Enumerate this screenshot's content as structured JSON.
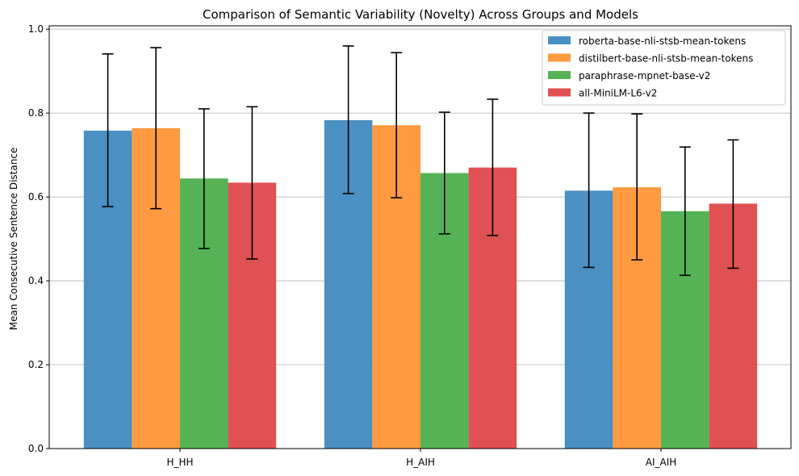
{
  "chart_data": {
    "type": "bar",
    "title": "Comparison of Semantic Variability (Novelty) Across Groups and Models",
    "xlabel": "",
    "ylabel": "Mean Consecutive Sentence Distance",
    "categories": [
      "H_HH",
      "H_AIH",
      "AI_AIH"
    ],
    "ylim": [
      0,
      1.008
    ],
    "yticks": [
      "0.0",
      "0.2",
      "0.4",
      "0.6",
      "0.8",
      "1.0"
    ],
    "ytick_values": [
      0,
      0.2,
      0.4,
      0.6,
      0.8,
      1.0
    ],
    "grid": "y",
    "legend_position": "top-right",
    "series": [
      {
        "name": "roberta-base-nli-stsb-mean-tokens",
        "color": "#4a90c2",
        "values": [
          0.758,
          0.783,
          0.615
        ],
        "err_low": [
          0.577,
          0.608,
          0.432
        ],
        "err_high": [
          0.941,
          0.96,
          0.8
        ]
      },
      {
        "name": "distilbert-base-nli-stsb-mean-tokens",
        "color": "#ff9a40",
        "values": [
          0.764,
          0.771,
          0.623
        ],
        "err_low": [
          0.572,
          0.598,
          0.45
        ],
        "err_high": [
          0.956,
          0.944,
          0.798
        ]
      },
      {
        "name": "paraphrase-mpnet-base-v2",
        "color": "#55b355",
        "values": [
          0.644,
          0.657,
          0.566
        ],
        "err_low": [
          0.477,
          0.512,
          0.413
        ],
        "err_high": [
          0.81,
          0.802,
          0.719
        ]
      },
      {
        "name": "all-MiniLM-L6-v2",
        "color": "#df5152",
        "values": [
          0.634,
          0.67,
          0.584
        ],
        "err_low": [
          0.452,
          0.508,
          0.43
        ],
        "err_high": [
          0.815,
          0.833,
          0.736
        ]
      }
    ]
  }
}
